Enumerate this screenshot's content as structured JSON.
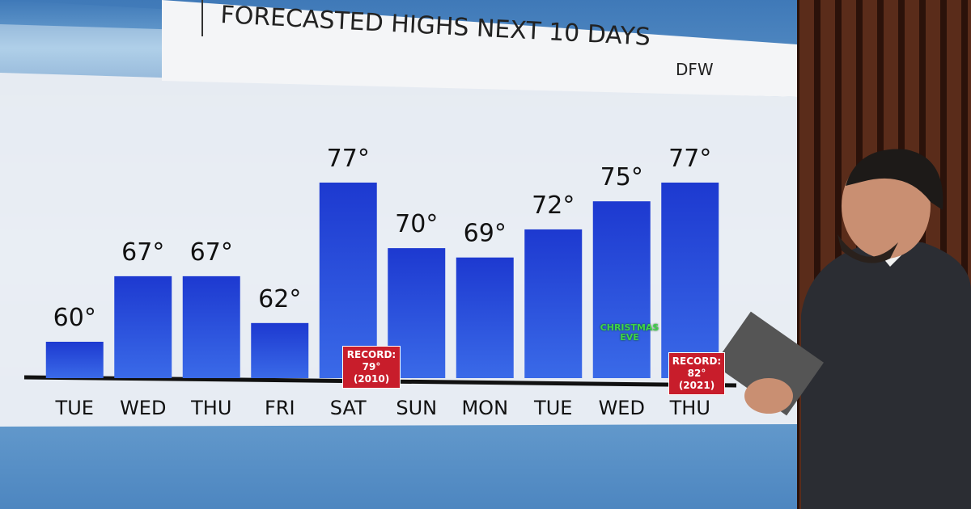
{
  "chart_data": {
    "type": "bar",
    "title": "FORECASTED HIGHS NEXT 10 DAYS",
    "location": "DFW",
    "categories": [
      "TUE",
      "WED",
      "THU",
      "FRI",
      "SAT",
      "SUN",
      "MON",
      "TUE",
      "WED",
      "THU"
    ],
    "values": [
      60,
      67,
      67,
      62,
      77,
      70,
      69,
      72,
      75,
      77
    ],
    "value_labels": [
      "60°",
      "67°",
      "67°",
      "62°",
      "77°",
      "70°",
      "69°",
      "72°",
      "75°",
      "77°"
    ],
    "color": "#1f3fd6",
    "annotations": [
      "RECORD: 79° (2010)",
      "RECORD: 82° (2021)",
      "CHRISTMAS EVE"
    ]
  }
}
